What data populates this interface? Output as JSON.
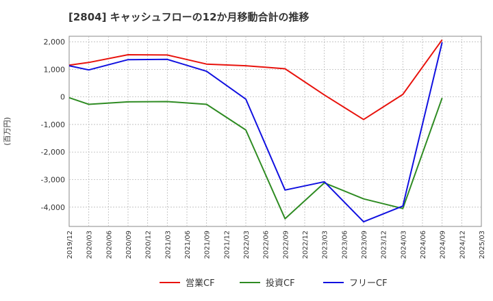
{
  "chart_data": {
    "type": "line",
    "title": "[2804]  キャッシュフローの12か月移動合計の推移",
    "ylabel": "(百万円)",
    "xlabel": "",
    "ylim": [
      -4700,
      2200
    ],
    "yticks": [
      2000,
      1000,
      0,
      -1000,
      -2000,
      -3000,
      -4000
    ],
    "ytick_labels": [
      "2,000",
      "1,000",
      "0",
      "-1,000",
      "-2,000",
      "-3,000",
      "-4,000"
    ],
    "categories": [
      "2019/12",
      "2020/03",
      "2020/06",
      "2020/09",
      "2020/12",
      "2021/03",
      "2021/06",
      "2021/09",
      "2021/12",
      "2022/03",
      "2022/06",
      "2022/09",
      "2022/12",
      "2023/03",
      "2023/06",
      "2023/09",
      "2023/12",
      "2024/03",
      "2024/06",
      "2024/09",
      "2024/12",
      "2025/03"
    ],
    "grid": true,
    "legend_position": "bottom",
    "series": [
      {
        "name": "営業CF",
        "color": "#e8120c",
        "values": [
          1150,
          1250,
          null,
          1530,
          null,
          1520,
          null,
          1190,
          null,
          1130,
          null,
          1020,
          null,
          70,
          null,
          -820,
          null,
          90,
          null,
          2070,
          null,
          null
        ]
      },
      {
        "name": "投資CF",
        "color": "#2e8b22",
        "values": [
          -30,
          -270,
          null,
          -180,
          null,
          -170,
          null,
          -270,
          null,
          -1200,
          null,
          -4420,
          null,
          -3120,
          null,
          -3700,
          null,
          -4050,
          null,
          -40,
          null,
          null
        ]
      },
      {
        "name": "フリーCF",
        "color": "#1010e0",
        "values": [
          1130,
          980,
          null,
          1350,
          null,
          1360,
          null,
          930,
          null,
          -80,
          null,
          -3380,
          null,
          -3080,
          null,
          -4530,
          null,
          -3960,
          null,
          1980,
          null,
          null
        ]
      }
    ]
  }
}
